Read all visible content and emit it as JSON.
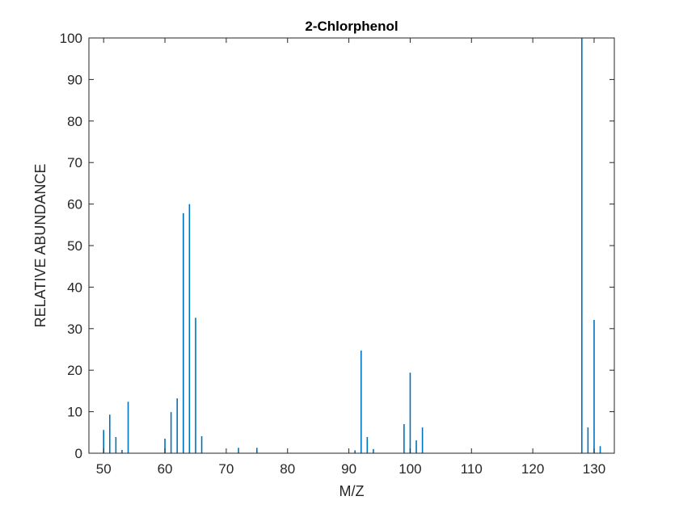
{
  "chart_data": {
    "type": "bar",
    "title": "2-Chlorphenol",
    "xlabel": "M/Z",
    "ylabel": "RELATIVE ABUNDANCE",
    "xlim": [
      47.6,
      133.3
    ],
    "ylim": [
      0,
      100
    ],
    "xticks": [
      50,
      60,
      70,
      80,
      90,
      100,
      110,
      120,
      130
    ],
    "yticks": [
      0,
      10,
      20,
      30,
      40,
      50,
      60,
      70,
      80,
      90,
      100
    ],
    "grid": false,
    "bar_color": "#0072BD",
    "x": [
      50,
      51,
      52,
      53,
      54,
      60,
      61,
      62,
      63,
      64,
      65,
      66,
      72,
      75,
      91,
      92,
      93,
      94,
      99,
      100,
      101,
      102,
      128,
      129,
      130,
      131
    ],
    "values": [
      5.6,
      9.3,
      3.9,
      0.8,
      12.4,
      3.5,
      9.9,
      13.2,
      57.8,
      60.0,
      32.6,
      4.1,
      1.3,
      1.3,
      0.7,
      24.7,
      3.9,
      1.0,
      7.0,
      19.4,
      3.1,
      6.2,
      100,
      6.2,
      32.1,
      1.7
    ]
  }
}
